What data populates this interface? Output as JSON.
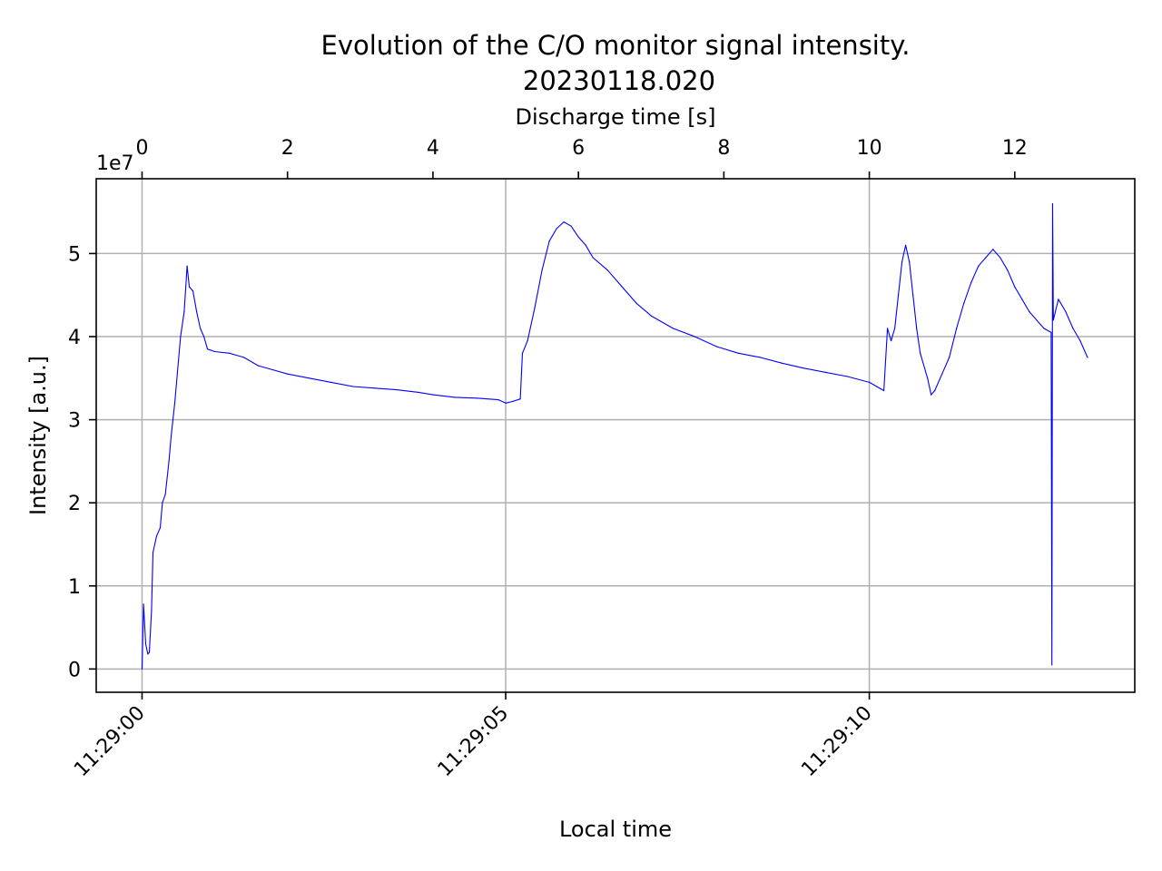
{
  "chart_data": {
    "type": "line",
    "title": "Evolution of the C/O monitor signal intensity.",
    "subtitle": "20230118.020",
    "xlabel": "Local time",
    "ylabel": "Intensity [a.u.]",
    "top_xlabel": "Discharge time [s]",
    "offset_text": "1e7",
    "grid": true,
    "xlim": [
      -0.63,
      13.65
    ],
    "ylim": [
      -0.28,
      5.9
    ],
    "y_scale_factor": 10000000,
    "x_ticks": [
      {
        "value": 0,
        "label": "11:29:00"
      },
      {
        "value": 5,
        "label": "11:29:05"
      },
      {
        "value": 10,
        "label": "11:29:10"
      }
    ],
    "top_ticks": [
      {
        "value": 0,
        "label": "0"
      },
      {
        "value": 2,
        "label": "2"
      },
      {
        "value": 4,
        "label": "4"
      },
      {
        "value": 6,
        "label": "6"
      },
      {
        "value": 8,
        "label": "8"
      },
      {
        "value": 10,
        "label": "10"
      },
      {
        "value": 12,
        "label": "12"
      }
    ],
    "y_ticks": [
      {
        "value": 0,
        "label": "0"
      },
      {
        "value": 1,
        "label": "1"
      },
      {
        "value": 2,
        "label": "2"
      },
      {
        "value": 3,
        "label": "3"
      },
      {
        "value": 4,
        "label": "4"
      },
      {
        "value": 5,
        "label": "5"
      }
    ],
    "series": [
      {
        "color": "#0000ff",
        "points": [
          [
            0.0,
            0.0
          ],
          [
            0.02,
            0.78
          ],
          [
            0.05,
            0.3
          ],
          [
            0.08,
            0.18
          ],
          [
            0.1,
            0.2
          ],
          [
            0.13,
            0.7
          ],
          [
            0.15,
            1.4
          ],
          [
            0.2,
            1.6
          ],
          [
            0.25,
            1.7
          ],
          [
            0.28,
            2.0
          ],
          [
            0.32,
            2.1
          ],
          [
            0.37,
            2.5
          ],
          [
            0.4,
            2.8
          ],
          [
            0.45,
            3.2
          ],
          [
            0.5,
            3.7
          ],
          [
            0.53,
            4.0
          ],
          [
            0.58,
            4.3
          ],
          [
            0.62,
            4.85
          ],
          [
            0.65,
            4.6
          ],
          [
            0.7,
            4.55
          ],
          [
            0.75,
            4.3
          ],
          [
            0.8,
            4.1
          ],
          [
            0.85,
            4.0
          ],
          [
            0.9,
            3.85
          ],
          [
            1.0,
            3.82
          ],
          [
            1.2,
            3.8
          ],
          [
            1.4,
            3.75
          ],
          [
            1.6,
            3.65
          ],
          [
            1.8,
            3.6
          ],
          [
            2.0,
            3.55
          ],
          [
            2.3,
            3.5
          ],
          [
            2.6,
            3.45
          ],
          [
            2.9,
            3.4
          ],
          [
            3.2,
            3.38
          ],
          [
            3.5,
            3.36
          ],
          [
            3.8,
            3.33
          ],
          [
            4.0,
            3.3
          ],
          [
            4.3,
            3.27
          ],
          [
            4.6,
            3.26
          ],
          [
            4.9,
            3.24
          ],
          [
            5.0,
            3.2
          ],
          [
            5.1,
            3.22
          ],
          [
            5.2,
            3.25
          ],
          [
            5.23,
            3.8
          ],
          [
            5.3,
            3.95
          ],
          [
            5.4,
            4.35
          ],
          [
            5.5,
            4.8
          ],
          [
            5.6,
            5.15
          ],
          [
            5.7,
            5.3
          ],
          [
            5.8,
            5.38
          ],
          [
            5.9,
            5.33
          ],
          [
            6.0,
            5.2
          ],
          [
            6.1,
            5.1
          ],
          [
            6.2,
            4.95
          ],
          [
            6.4,
            4.8
          ],
          [
            6.6,
            4.6
          ],
          [
            6.8,
            4.4
          ],
          [
            7.0,
            4.25
          ],
          [
            7.3,
            4.1
          ],
          [
            7.6,
            4.0
          ],
          [
            7.9,
            3.88
          ],
          [
            8.2,
            3.8
          ],
          [
            8.5,
            3.75
          ],
          [
            8.8,
            3.68
          ],
          [
            9.1,
            3.62
          ],
          [
            9.4,
            3.57
          ],
          [
            9.7,
            3.52
          ],
          [
            10.0,
            3.45
          ],
          [
            10.2,
            3.35
          ],
          [
            10.25,
            4.1
          ],
          [
            10.3,
            3.95
          ],
          [
            10.35,
            4.1
          ],
          [
            10.4,
            4.5
          ],
          [
            10.45,
            4.9
          ],
          [
            10.5,
            5.1
          ],
          [
            10.55,
            4.9
          ],
          [
            10.6,
            4.5
          ],
          [
            10.65,
            4.1
          ],
          [
            10.7,
            3.8
          ],
          [
            10.8,
            3.5
          ],
          [
            10.85,
            3.3
          ],
          [
            10.9,
            3.35
          ],
          [
            11.0,
            3.55
          ],
          [
            11.1,
            3.75
          ],
          [
            11.2,
            4.1
          ],
          [
            11.3,
            4.4
          ],
          [
            11.4,
            4.65
          ],
          [
            11.5,
            4.85
          ],
          [
            11.6,
            4.95
          ],
          [
            11.7,
            5.05
          ],
          [
            11.8,
            4.95
          ],
          [
            11.9,
            4.8
          ],
          [
            12.0,
            4.6
          ],
          [
            12.1,
            4.45
          ],
          [
            12.2,
            4.3
          ],
          [
            12.3,
            4.2
          ],
          [
            12.4,
            4.1
          ],
          [
            12.5,
            4.05
          ],
          [
            12.51,
            0.05
          ],
          [
            12.52,
            5.6
          ],
          [
            12.53,
            4.2
          ],
          [
            12.6,
            4.45
          ],
          [
            12.7,
            4.3
          ],
          [
            12.8,
            4.1
          ],
          [
            12.9,
            3.95
          ],
          [
            13.0,
            3.75
          ]
        ]
      }
    ]
  }
}
